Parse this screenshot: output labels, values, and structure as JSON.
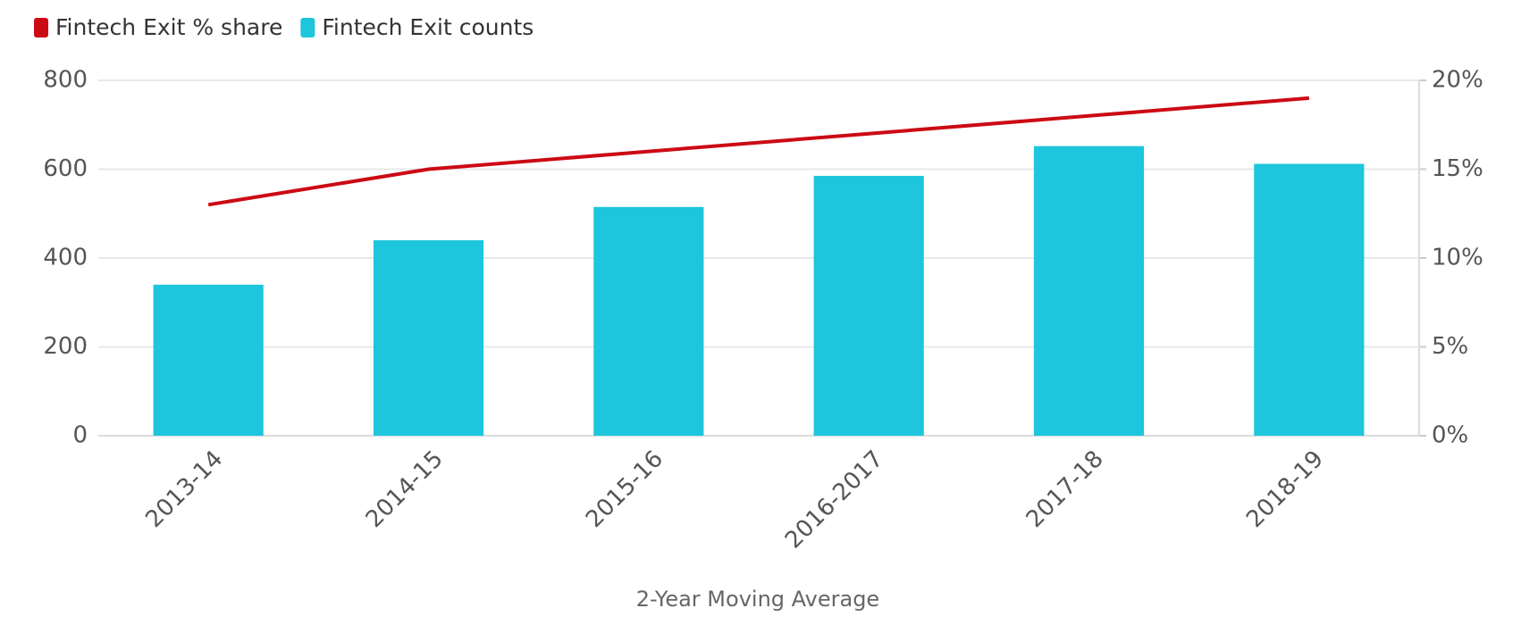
{
  "chart_data": {
    "type": "combo",
    "x_label": "2-Year Moving Average",
    "categories": [
      "2013-14",
      "2014-15",
      "2015-16",
      "2016-2017",
      "2017-18",
      "2018-19"
    ],
    "series": [
      {
        "name": "Fintech Exit % share",
        "type": "line",
        "axis": "y2",
        "color": "#cc0a14",
        "values": [
          13,
          15,
          16,
          17,
          18,
          19
        ]
      },
      {
        "name": "Fintech Exit counts",
        "type": "bar",
        "color": "#1dc6dc",
        "values": [
          340,
          440,
          515,
          585,
          652,
          612
        ]
      }
    ],
    "ylim": [
      0,
      800
    ],
    "yticks": [
      0,
      200,
      400,
      600,
      800
    ],
    "y2lim": [
      0,
      20
    ],
    "y2ticks": [
      {
        "value": 0,
        "label": "0%"
      },
      {
        "value": 5,
        "label": "5%"
      },
      {
        "value": 10,
        "label": "10%"
      },
      {
        "value": 15,
        "label": "15%"
      },
      {
        "value": 20,
        "label": "20%"
      }
    ],
    "grid": true,
    "legend": "top-left"
  }
}
